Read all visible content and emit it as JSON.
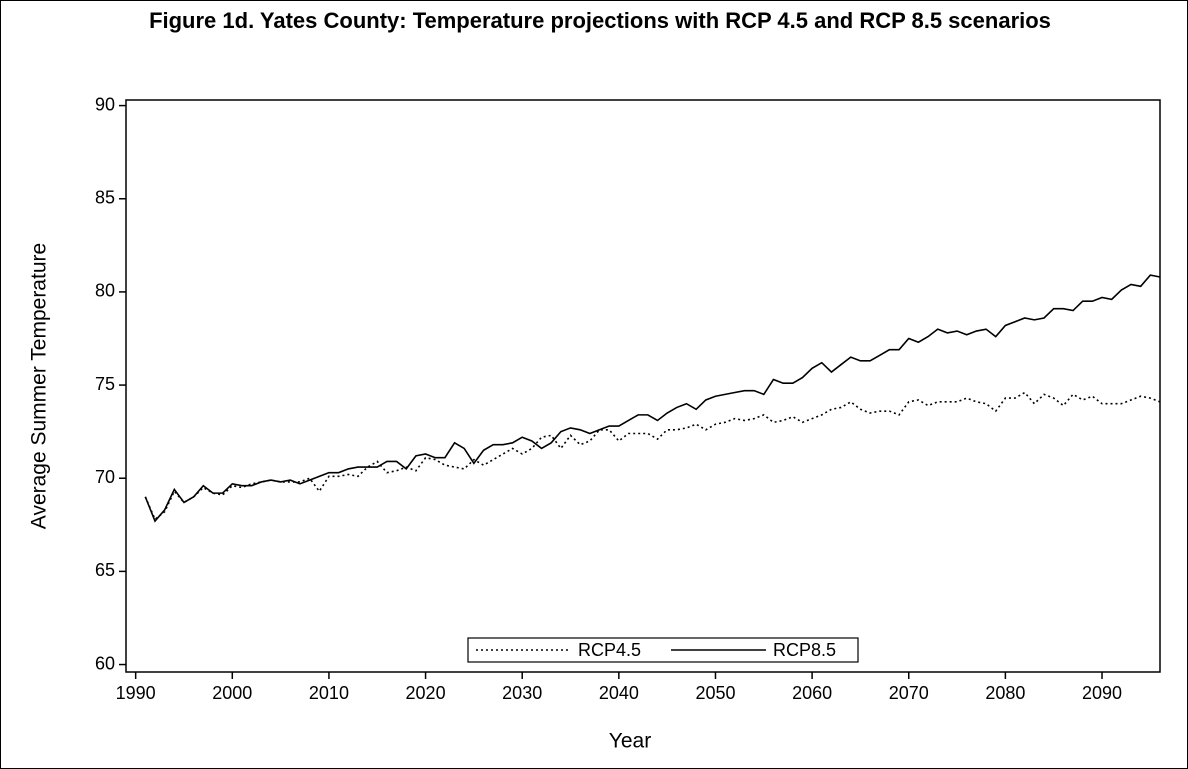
{
  "chart_data": {
    "type": "line",
    "title": "Figure 1d. Yates County: Temperature projections with RCP 4.5 and RCP 8.5 scenarios",
    "x_label": "Year",
    "y_label": "Average Summer Temperature",
    "x": [
      1991,
      1992,
      1993,
      1994,
      1995,
      1996,
      1997,
      1998,
      1999,
      2000,
      2001,
      2002,
      2003,
      2004,
      2005,
      2006,
      2007,
      2008,
      2009,
      2010,
      2011,
      2012,
      2013,
      2014,
      2015,
      2016,
      2017,
      2018,
      2019,
      2020,
      2021,
      2022,
      2023,
      2024,
      2025,
      2026,
      2027,
      2028,
      2029,
      2030,
      2031,
      2032,
      2033,
      2034,
      2035,
      2036,
      2037,
      2038,
      2039,
      2040,
      2041,
      2042,
      2043,
      2044,
      2045,
      2046,
      2047,
      2048,
      2049,
      2050,
      2051,
      2052,
      2053,
      2054,
      2055,
      2056,
      2057,
      2058,
      2059,
      2060,
      2061,
      2062,
      2063,
      2064,
      2065,
      2066,
      2067,
      2068,
      2069,
      2070,
      2071,
      2072,
      2073,
      2074,
      2075,
      2076,
      2077,
      2078,
      2079,
      2080,
      2081,
      2082,
      2083,
      2084,
      2085,
      2086,
      2087,
      2088,
      2089,
      2090,
      2091,
      2092,
      2093,
      2094,
      2095,
      2096
    ],
    "series": [
      {
        "name": "RCP4.5",
        "color": "#000000",
        "line_style": "dotted",
        "values": [
          69.0,
          67.8,
          68.2,
          69.3,
          68.7,
          69.0,
          69.5,
          69.2,
          69.1,
          69.6,
          69.5,
          69.7,
          69.8,
          69.9,
          69.8,
          69.8,
          69.8,
          70.0,
          69.3,
          70.1,
          70.1,
          70.2,
          70.1,
          70.6,
          70.9,
          70.3,
          70.4,
          70.6,
          70.4,
          71.1,
          71.0,
          70.7,
          70.6,
          70.5,
          71.0,
          70.7,
          71.0,
          71.3,
          71.6,
          71.3,
          71.6,
          72.2,
          72.3,
          71.6,
          72.3,
          71.8,
          72.0,
          72.6,
          72.6,
          72.0,
          72.4,
          72.4,
          72.4,
          72.1,
          72.6,
          72.6,
          72.7,
          72.9,
          72.6,
          72.9,
          73.0,
          73.2,
          73.1,
          73.2,
          73.4,
          73.0,
          73.1,
          73.3,
          73.0,
          73.2,
          73.4,
          73.7,
          73.8,
          74.1,
          73.7,
          73.5,
          73.6,
          73.6,
          73.4,
          74.1,
          74.2,
          73.9,
          74.1,
          74.1,
          74.1,
          74.3,
          74.1,
          74.0,
          73.6,
          74.3,
          74.3,
          74.6,
          74.0,
          74.5,
          74.3,
          73.9,
          74.5,
          74.2,
          74.4,
          74.0,
          74.0,
          74.0,
          74.2,
          74.4,
          74.3,
          74.1
        ]
      },
      {
        "name": "RCP8.5",
        "color": "#000000",
        "line_style": "solid",
        "values": [
          69.0,
          67.7,
          68.3,
          69.4,
          68.7,
          69.0,
          69.6,
          69.2,
          69.2,
          69.7,
          69.6,
          69.6,
          69.8,
          69.9,
          69.8,
          69.9,
          69.7,
          69.9,
          70.1,
          70.3,
          70.3,
          70.5,
          70.6,
          70.6,
          70.6,
          70.9,
          70.9,
          70.5,
          71.2,
          71.3,
          71.1,
          71.1,
          71.9,
          71.6,
          70.8,
          71.5,
          71.8,
          71.8,
          71.9,
          72.2,
          72.0,
          71.6,
          71.9,
          72.5,
          72.7,
          72.6,
          72.4,
          72.6,
          72.8,
          72.8,
          73.1,
          73.4,
          73.4,
          73.1,
          73.5,
          73.8,
          74.0,
          73.7,
          74.2,
          74.4,
          74.5,
          74.6,
          74.7,
          74.7,
          74.5,
          75.3,
          75.1,
          75.1,
          75.4,
          75.9,
          76.2,
          75.7,
          76.1,
          76.5,
          76.3,
          76.3,
          76.6,
          76.9,
          76.9,
          77.5,
          77.3,
          77.6,
          78.0,
          77.8,
          77.9,
          77.7,
          77.9,
          78.0,
          77.6,
          78.2,
          78.4,
          78.6,
          78.5,
          78.6,
          79.1,
          79.1,
          79.0,
          79.5,
          79.5,
          79.7,
          79.6,
          80.1,
          80.4,
          80.3,
          80.9,
          80.8
        ]
      }
    ],
    "xlim": [
      1989,
      2096
    ],
    "xticks": [
      1990,
      2000,
      2010,
      2020,
      2030,
      2040,
      2050,
      2060,
      2070,
      2080,
      2090
    ],
    "ylim": [
      59.6,
      90.3
    ],
    "yticks": [
      60,
      65,
      70,
      75,
      80,
      85,
      90
    ],
    "grid": false,
    "legend": "bottom"
  }
}
